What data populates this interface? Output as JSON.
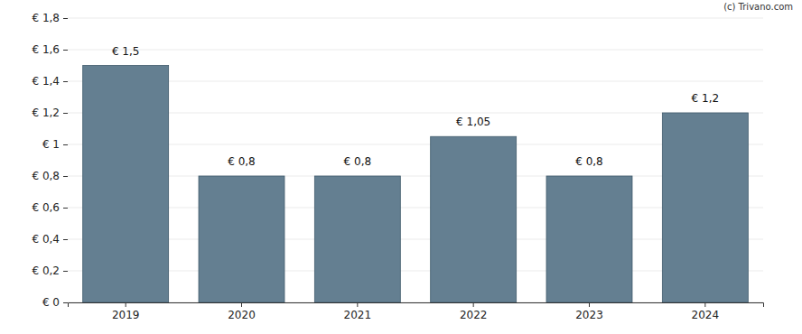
{
  "chart_data": {
    "type": "bar",
    "categories": [
      "2019",
      "2020",
      "2021",
      "2022",
      "2023",
      "2024"
    ],
    "values": [
      1.5,
      0.8,
      0.8,
      1.05,
      0.8,
      1.2
    ],
    "value_labels": [
      "€ 1,5",
      "€ 0,8",
      "€ 0,8",
      "€ 1,05",
      "€ 0,8",
      "€ 1,2"
    ],
    "color": "#647f91",
    "ylim": [
      0,
      1.8
    ],
    "yticks": [
      {
        "value": 0,
        "label": "€ 0"
      },
      {
        "value": 0.2,
        "label": "€ 0,2"
      },
      {
        "value": 0.4,
        "label": "€ 0,4"
      },
      {
        "value": 0.6,
        "label": "€ 0,6"
      },
      {
        "value": 0.8,
        "label": "€ 0,8"
      },
      {
        "value": 1,
        "label": "€ 1"
      },
      {
        "value": 1.2,
        "label": "€ 1,2"
      },
      {
        "value": 1.4,
        "label": "€ 1,4"
      },
      {
        "value": 1.6,
        "label": "€ 1,6"
      },
      {
        "value": 1.8,
        "label": "€ 1,8"
      }
    ],
    "grid": true,
    "data_labels": true,
    "annotations": [
      "(c) Trivano.com"
    ]
  }
}
